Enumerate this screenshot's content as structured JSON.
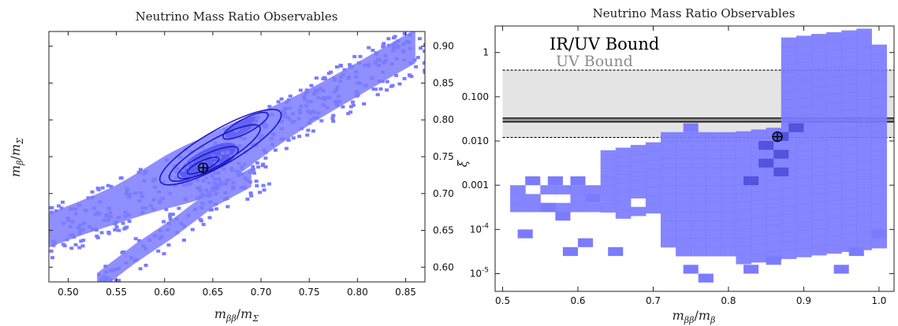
{
  "chart_data": [
    {
      "type": "heatmap",
      "title": "Neutrino Mass Ratio Observables",
      "xlabel_base": "m",
      "xlabel_sub": "ββ",
      "xlabel_den": "m",
      "xlabel_densub": "Σ",
      "ylabel_base": "m",
      "ylabel_sub": "β",
      "ylabel_den": "m",
      "ylabel_densub": "Σ",
      "xlim": [
        0.48,
        0.87
      ],
      "ylim": [
        0.58,
        0.92
      ],
      "xticks": [
        "0.50",
        "0.55",
        "0.60",
        "0.65",
        "0.70",
        "0.75",
        "0.80",
        "0.85"
      ],
      "xtick_values": [
        0.5,
        0.55,
        0.6,
        0.65,
        0.7,
        0.75,
        0.8,
        0.85
      ],
      "yticks": [
        "0.60",
        "0.65",
        "0.70",
        "0.75",
        "0.80",
        "0.85",
        "0.90"
      ],
      "ytick_values": [
        0.6,
        0.65,
        0.7,
        0.75,
        0.8,
        0.85,
        0.9
      ],
      "density_color": "#7b7bff",
      "contour_color": "#1a1acc",
      "main_ridge": [
        [
          0.48,
          0.655
        ],
        [
          0.55,
          0.69
        ],
        [
          0.6,
          0.72
        ],
        [
          0.64,
          0.74
        ],
        [
          0.68,
          0.77
        ],
        [
          0.72,
          0.8
        ],
        [
          0.78,
          0.845
        ],
        [
          0.82,
          0.875
        ],
        [
          0.86,
          0.905
        ]
      ],
      "lower_branch": [
        [
          0.53,
          0.58
        ],
        [
          0.57,
          0.62
        ],
        [
          0.61,
          0.655
        ],
        [
          0.65,
          0.695
        ],
        [
          0.7,
          0.73
        ]
      ],
      "marker": {
        "x": 0.64,
        "y": 0.735,
        "symbol": "⊕"
      },
      "grid": false
    },
    {
      "type": "heatmap",
      "title": "Neutrino Mass Ratio Observables",
      "xlabel_base": "m",
      "xlabel_sub": "ββ",
      "xlabel_den": "m",
      "xlabel_densub": "β",
      "ylabel": "ξ",
      "ylog": true,
      "xlim": [
        0.49,
        1.02
      ],
      "ylim_exp": [
        -5.4,
        0.6
      ],
      "xticks": [
        "0.5",
        "0.6",
        "0.7",
        "0.8",
        "0.9",
        "1.0"
      ],
      "xtick_values": [
        0.5,
        0.6,
        0.7,
        0.8,
        0.9,
        1.0
      ],
      "yticks": [
        {
          "exp": 0,
          "label": "1"
        },
        {
          "exp": -1,
          "label": "0.100"
        },
        {
          "exp": -2,
          "label": "0.010"
        },
        {
          "exp": -3,
          "label": "0.001"
        },
        {
          "exp": -4,
          "base": "10",
          "sup": "-4"
        },
        {
          "exp": -5,
          "base": "10",
          "sup": "-5"
        }
      ],
      "density_color": "#7b7bff",
      "bands": [
        {
          "name": "UV Bound",
          "ymin": 0.012,
          "ymax": 0.4,
          "color": "#e4e4e4",
          "style": "dotted-edges"
        },
        {
          "name": "IR/UV Bound",
          "ymin": 0.027,
          "ymax": 0.033,
          "color": "#000000",
          "style": "dark-band"
        }
      ],
      "legend": [
        "IR/UV Bound",
        "UV Bound"
      ],
      "legend_position": "top-left",
      "marker": {
        "x": 0.865,
        "y": 0.0125,
        "symbol": "⊕"
      },
      "grid": false
    }
  ]
}
